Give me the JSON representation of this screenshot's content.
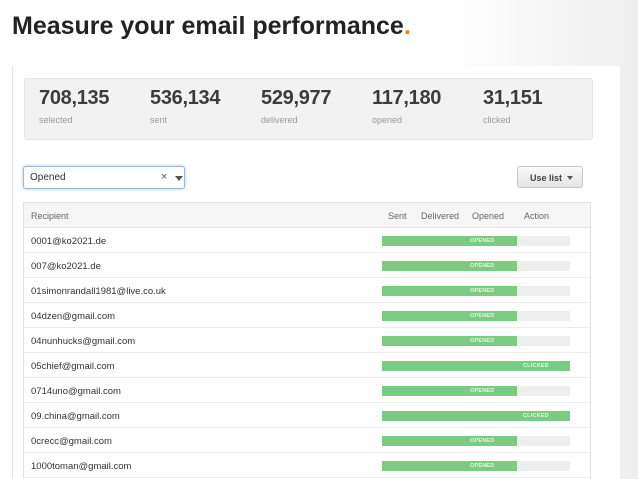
{
  "slide": {
    "title": "Measure your email performance",
    "title_dot": "."
  },
  "stats": [
    {
      "value": "708,135",
      "label": "selected"
    },
    {
      "value": "536,134",
      "label": "sent"
    },
    {
      "value": "529,977",
      "label": "delivered"
    },
    {
      "value": "117,180",
      "label": "opened"
    },
    {
      "value": "31,151",
      "label": "clicked"
    }
  ],
  "filter": {
    "value": "Opened",
    "clear_glyph": "×"
  },
  "use_list": {
    "label": "Use list"
  },
  "table": {
    "columns": {
      "recipient": "Recipient",
      "sent": "Sent",
      "delivered": "Delivered",
      "opened": "Opened",
      "action": "Action"
    },
    "rows": [
      {
        "email": "0001@ko2021.de",
        "status": "OPENED",
        "progress": 0.72
      },
      {
        "email": "007@ko2021.de",
        "status": "OPENED",
        "progress": 0.72
      },
      {
        "email": "01simonrandall1981@live.co.uk",
        "status": "OPENED",
        "progress": 0.72
      },
      {
        "email": "04dzen@gmail.com",
        "status": "OPENED",
        "progress": 0.72
      },
      {
        "email": "04nunhucks@gmail.com",
        "status": "OPENED",
        "progress": 0.72
      },
      {
        "email": "05chief@gmail.com",
        "status": "CLICKED",
        "progress": 1.0
      },
      {
        "email": "0714uno@gmail.com",
        "status": "OPENED",
        "progress": 0.72
      },
      {
        "email": "09.china@gmail.com",
        "status": "CLICKED",
        "progress": 1.0
      },
      {
        "email": "0crecc@gmail.com",
        "status": "OPENED",
        "progress": 0.72
      },
      {
        "email": "1000toman@gmail.com",
        "status": "OPENED",
        "progress": 0.72
      }
    ]
  },
  "colors": {
    "accent": "#e8821e",
    "bar_fill": "#7ccb82",
    "bar_track": "#eeeeee"
  }
}
